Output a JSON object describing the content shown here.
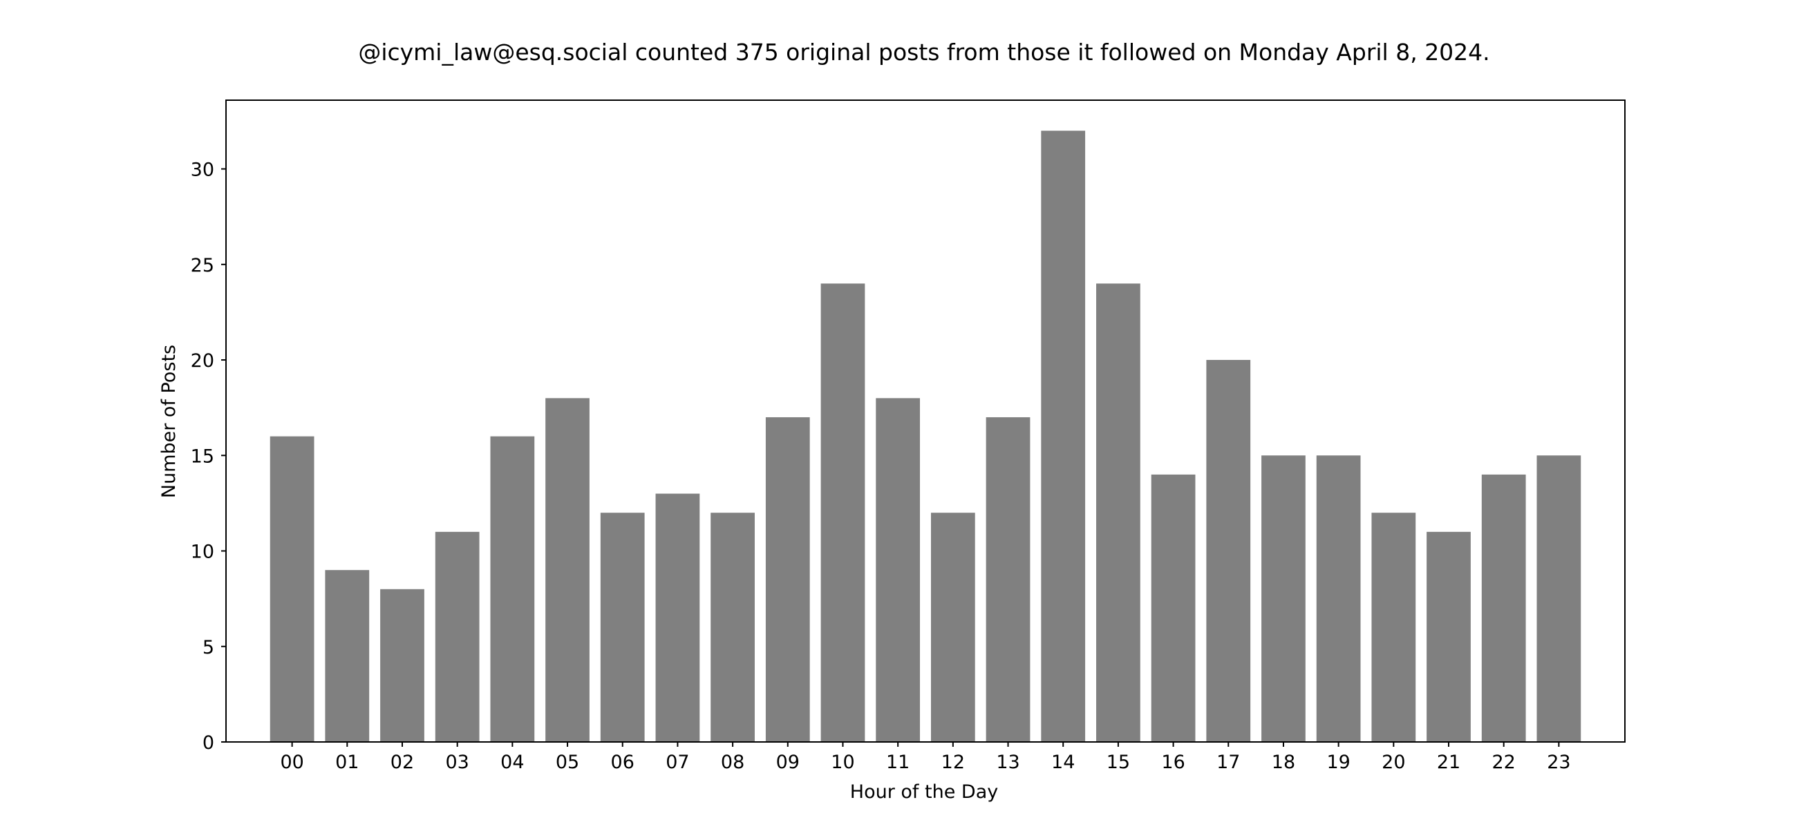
{
  "chart_data": {
    "type": "bar",
    "title": "@icymi_law@esq.social counted 375 original posts from those it followed on Monday April 8, 2024.",
    "xlabel": "Hour of the Day",
    "ylabel": "Number of Posts",
    "categories": [
      "00",
      "01",
      "02",
      "03",
      "04",
      "05",
      "06",
      "07",
      "08",
      "09",
      "10",
      "11",
      "12",
      "13",
      "14",
      "15",
      "16",
      "17",
      "18",
      "19",
      "20",
      "21",
      "22",
      "23"
    ],
    "values": [
      16,
      9,
      8,
      11,
      16,
      18,
      12,
      13,
      12,
      17,
      24,
      18,
      12,
      17,
      32,
      24,
      14,
      20,
      15,
      15,
      12,
      11,
      14,
      15
    ],
    "ylim": [
      0,
      33.6
    ],
    "yticks": [
      0,
      5,
      10,
      15,
      20,
      25,
      30
    ],
    "grid": false,
    "legend": false,
    "bar_color": "#808080"
  }
}
